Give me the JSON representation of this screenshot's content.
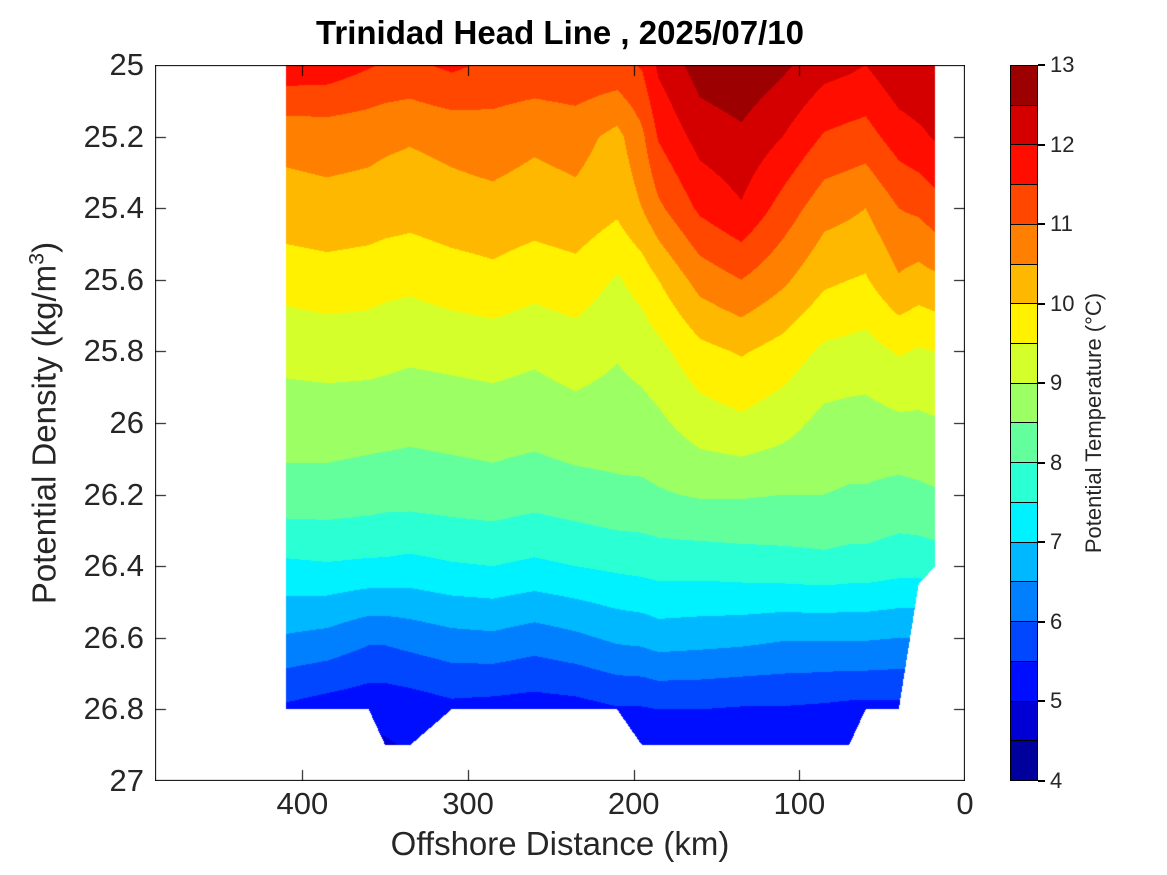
{
  "title": "Trinidad Head Line , 2025/07/10",
  "x_axis": {
    "label": "Offshore Distance (km)",
    "ticks": [
      400,
      300,
      200,
      100,
      0
    ],
    "range": [
      489,
      0
    ],
    "reversed": true
  },
  "y_axis": {
    "label_base": "Potential Density (kg/m",
    "label_sup": "3",
    "label_close": ")",
    "ticks": [
      25,
      25.2,
      25.4,
      25.6,
      25.8,
      26,
      26.2,
      26.4,
      26.6,
      26.8,
      27
    ],
    "range": [
      25,
      27
    ],
    "reversed": true
  },
  "colorbar": {
    "label": "Potential Temperature (°C)",
    "ticks": [
      4,
      5,
      6,
      7,
      8,
      9,
      10,
      11,
      12,
      13
    ],
    "level_min": 4,
    "level_max": 13,
    "level_step": 0.5,
    "colors": [
      "#00009C",
      "#0000D4",
      "#000EFF",
      "#0047FF",
      "#0080FF",
      "#00B8FF",
      "#00F1FF",
      "#2BFFD4",
      "#63FF9C",
      "#9CFF63",
      "#D4FF2B",
      "#FFF100",
      "#FFB800",
      "#FF8000",
      "#FF4700",
      "#FF0E00",
      "#D40000",
      "#9C0000"
    ]
  },
  "chart_data": {
    "type": "filled_contour",
    "title": "Trinidad Head Line , 2025/07/10",
    "xlabel": "Offshore Distance (km)",
    "ylabel": "Potential Density (kg/m3)",
    "zlabel": "Potential Temperature (°C)",
    "xlim": [
      489,
      0
    ],
    "ylim": [
      25,
      27
    ],
    "zlim": [
      4,
      13
    ],
    "contour_interval": 0.5,
    "x_reversed": true,
    "y_increases_downward": true,
    "grid": false,
    "station_km": [
      410,
      385,
      360,
      350,
      335,
      310,
      285,
      260,
      235,
      210,
      195,
      185,
      160,
      135,
      110,
      85,
      70,
      60,
      40,
      28,
      18
    ],
    "sigma_levels": [
      25.0,
      25.2,
      25.4,
      25.6,
      25.8,
      26.0,
      26.2,
      26.4,
      26.6,
      26.8,
      26.9
    ],
    "temperature_grid_by_sigma": [
      [
        11.85,
        11.8,
        11.55,
        11.45,
        11.4,
        11.6,
        11.4,
        11.35,
        11.4,
        11.35,
        11.55,
        12.1,
        12.75,
        12.9,
        12.6,
        12.2,
        12.1,
        12.0,
        12.4,
        12.45,
        12.35
      ],
      [
        10.65,
        10.7,
        10.65,
        10.6,
        10.55,
        10.65,
        10.75,
        10.6,
        10.7,
        10.35,
        10.9,
        11.55,
        12.2,
        12.4,
        12.0,
        11.45,
        11.35,
        11.3,
        11.75,
        11.9,
        12.05
      ],
      [
        10.3,
        10.35,
        10.3,
        10.25,
        10.2,
        10.3,
        10.35,
        10.25,
        10.35,
        10.1,
        10.5,
        10.9,
        11.6,
        11.95,
        11.3,
        10.7,
        10.6,
        10.5,
        11.0,
        11.1,
        11.3
      ],
      [
        9.7,
        9.78,
        9.72,
        9.66,
        9.62,
        9.76,
        9.86,
        9.7,
        9.8,
        9.45,
        9.7,
        10.0,
        10.7,
        11.0,
        10.6,
        10.1,
        10.0,
        9.95,
        10.45,
        10.3,
        10.4
      ],
      [
        9.15,
        9.2,
        9.2,
        9.15,
        9.1,
        9.15,
        9.2,
        9.1,
        9.25,
        9.05,
        9.2,
        9.35,
        9.85,
        10.05,
        9.8,
        9.4,
        9.35,
        9.3,
        9.55,
        9.45,
        9.5
      ],
      [
        8.75,
        8.75,
        8.7,
        8.7,
        8.65,
        8.7,
        8.75,
        8.7,
        8.8,
        8.75,
        8.8,
        8.9,
        9.25,
        9.4,
        9.2,
        8.85,
        8.8,
        8.8,
        8.9,
        8.9,
        8.95
      ],
      [
        8.3,
        8.3,
        8.25,
        8.2,
        8.2,
        8.25,
        8.3,
        8.2,
        8.3,
        8.4,
        8.4,
        8.45,
        8.55,
        8.55,
        8.5,
        8.5,
        8.45,
        8.45,
        8.35,
        8.4,
        8.45
      ],
      [
        7.4,
        7.45,
        7.4,
        7.4,
        7.35,
        7.45,
        7.5,
        7.4,
        7.5,
        7.6,
        7.65,
        7.7,
        7.7,
        7.75,
        7.8,
        7.85,
        7.8,
        7.8,
        7.7,
        7.7,
        7.75
      ],
      [
        6.45,
        6.35,
        6.1,
        6.1,
        6.2,
        6.35,
        6.4,
        6.25,
        6.4,
        6.6,
        6.65,
        6.75,
        6.7,
        6.65,
        6.55,
        6.55,
        6.55,
        6.55,
        6.5,
        6.5,
        6.5
      ],
      [
        5.4,
        5.25,
        5.15,
        5.15,
        5.2,
        5.35,
        5.3,
        5.25,
        5.3,
        5.45,
        5.45,
        5.5,
        5.5,
        5.45,
        5.45,
        5.4,
        5.35,
        5.35,
        5.35,
        5.4,
        5.4
      ],
      [
        4.8,
        4.7,
        4.9,
        4.95,
        5.05,
        4.8,
        4.7,
        4.65,
        4.7,
        5.05,
        5.05,
        5.1,
        5.1,
        5.05,
        5.1,
        5.05,
        5.0,
        4.8,
        4.8,
        4.8,
        4.8
      ]
    ],
    "max_sigma_with_data": [
      26.8,
      26.8,
      26.8,
      26.9,
      26.9,
      26.8,
      26.8,
      26.8,
      26.8,
      26.8,
      26.9,
      26.9,
      26.9,
      26.9,
      26.9,
      26.9,
      26.9,
      26.8,
      26.8,
      26.45,
      26.4
    ],
    "x_data_range_km": [
      410,
      18
    ]
  }
}
